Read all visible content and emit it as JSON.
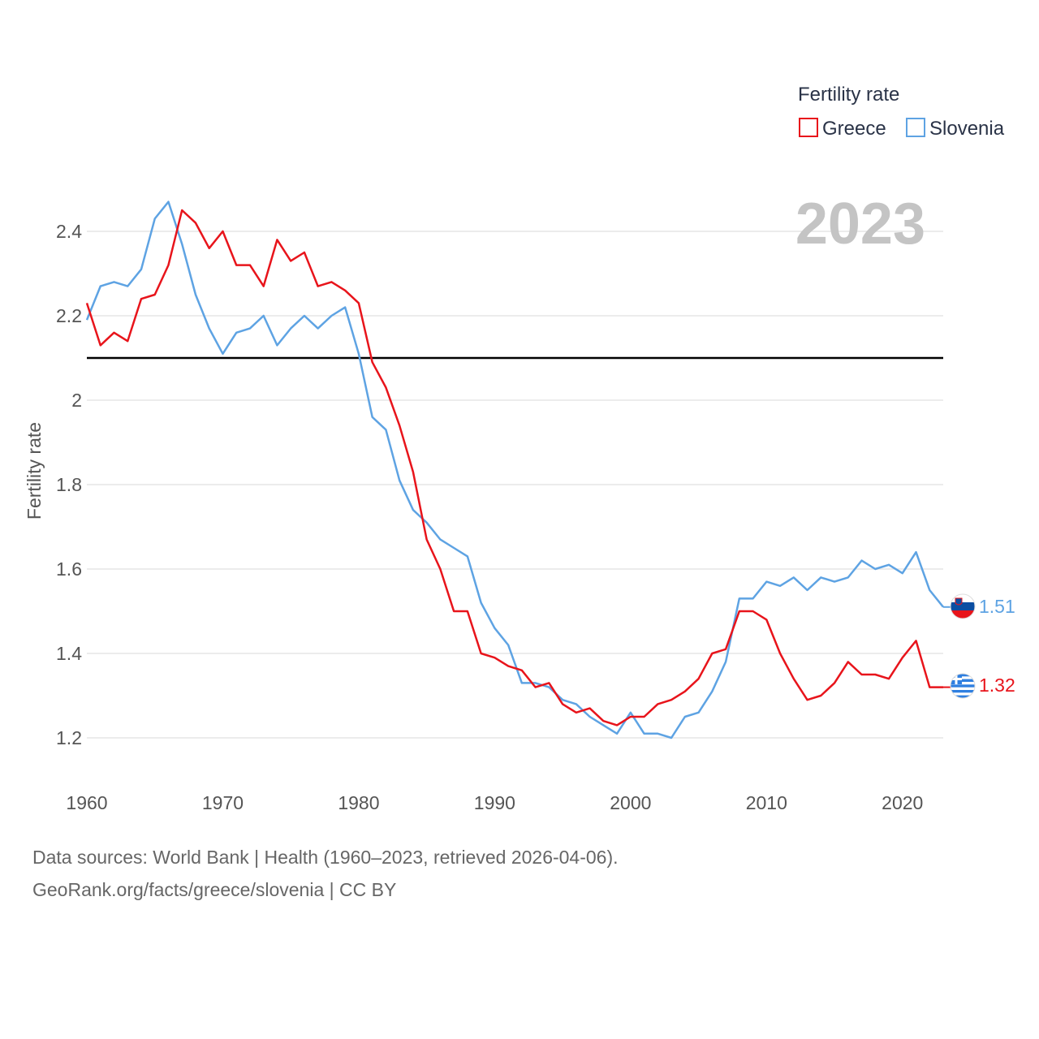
{
  "chart_data": {
    "type": "line",
    "year_label": "2023",
    "ylabel": "Fertility rate",
    "legend_title": "Fertility rate",
    "ylim": [
      1.1,
      2.55
    ],
    "xlim": [
      1960,
      2023
    ],
    "y_ticks": [
      {
        "value": 1.2,
        "label": "1.2"
      },
      {
        "value": 1.4,
        "label": "1.4"
      },
      {
        "value": 1.6,
        "label": "1.6"
      },
      {
        "value": 1.8,
        "label": "1.8"
      },
      {
        "value": 2.0,
        "label": "2"
      },
      {
        "value": 2.2,
        "label": "2.2"
      },
      {
        "value": 2.4,
        "label": "2.4"
      }
    ],
    "x_ticks": [
      {
        "value": 1960,
        "label": "1960"
      },
      {
        "value": 1970,
        "label": "1970"
      },
      {
        "value": 1980,
        "label": "1980"
      },
      {
        "value": 1990,
        "label": "1990"
      },
      {
        "value": 2000,
        "label": "2000"
      },
      {
        "value": 2010,
        "label": "2010"
      },
      {
        "value": 2020,
        "label": "2020"
      }
    ],
    "reference_line": 2.1,
    "series": [
      {
        "name": "Greece",
        "color": "#e8141b",
        "end_label": "1.32",
        "flag": "greece-flag",
        "values": [
          2.23,
          2.13,
          2.16,
          2.14,
          2.24,
          2.25,
          2.32,
          2.45,
          2.42,
          2.36,
          2.4,
          2.32,
          2.32,
          2.27,
          2.38,
          2.33,
          2.35,
          2.27,
          2.28,
          2.26,
          2.23,
          2.09,
          2.03,
          1.94,
          1.83,
          1.67,
          1.6,
          1.5,
          1.5,
          1.4,
          1.39,
          1.37,
          1.36,
          1.32,
          1.33,
          1.28,
          1.26,
          1.27,
          1.24,
          1.23,
          1.25,
          1.25,
          1.28,
          1.29,
          1.31,
          1.34,
          1.4,
          1.41,
          1.5,
          1.5,
          1.48,
          1.4,
          1.34,
          1.29,
          1.3,
          1.33,
          1.38,
          1.35,
          1.35,
          1.34,
          1.39,
          1.43,
          1.32,
          1.32
        ]
      },
      {
        "name": "Slovenia",
        "color": "#5ea3e3",
        "end_label": "1.51",
        "flag": "slovenia-flag",
        "values": [
          2.19,
          2.27,
          2.28,
          2.27,
          2.31,
          2.43,
          2.47,
          2.37,
          2.25,
          2.17,
          2.11,
          2.16,
          2.17,
          2.2,
          2.13,
          2.17,
          2.2,
          2.17,
          2.2,
          2.22,
          2.11,
          1.96,
          1.93,
          1.81,
          1.74,
          1.71,
          1.67,
          1.65,
          1.63,
          1.52,
          1.46,
          1.42,
          1.33,
          1.33,
          1.32,
          1.29,
          1.28,
          1.25,
          1.23,
          1.21,
          1.26,
          1.21,
          1.21,
          1.2,
          1.25,
          1.26,
          1.31,
          1.38,
          1.53,
          1.53,
          1.57,
          1.56,
          1.58,
          1.55,
          1.58,
          1.57,
          1.58,
          1.62,
          1.6,
          1.61,
          1.59,
          1.64,
          1.55,
          1.51
        ]
      }
    ]
  },
  "source": {
    "line1": "Data sources: World Bank | Health (1960–2023, retrieved 2026-04-06).",
    "line2": "GeoRank.org/facts/greece/slovenia | CC BY"
  }
}
